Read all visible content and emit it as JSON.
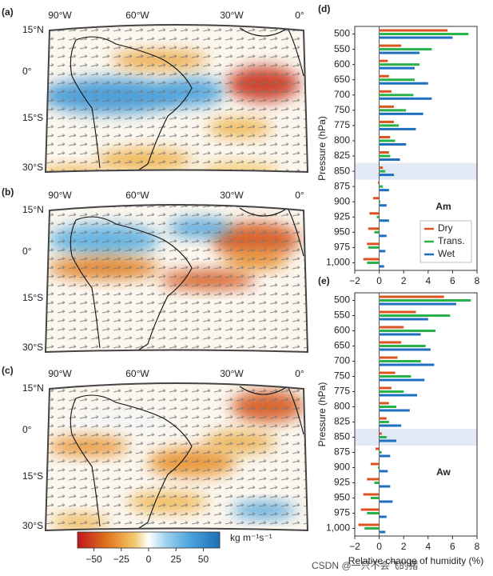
{
  "maps": {
    "panels": [
      {
        "label": "(a)"
      },
      {
        "label": "(b)"
      },
      {
        "label": "(c)"
      }
    ],
    "lon_labels": [
      "90°W",
      "60°W",
      "30°W",
      "0°"
    ],
    "lat_labels": [
      "15°N",
      "0°",
      "15°S",
      "30°S"
    ]
  },
  "colorbar": {
    "lim": [
      -65,
      65
    ],
    "ticks": [
      {
        "value": -50,
        "label": "−50"
      },
      {
        "value": -25,
        "label": "−25"
      },
      0,
      25,
      50
    ],
    "unit": "kg m⁻¹s⁻¹"
  },
  "watermark": "CSDN @一只不会飞的猪",
  "chart_data": [
    {
      "type": "bar",
      "orientation": "horizontal",
      "panel": "(d)",
      "title": "Am",
      "ylabel": "Pressure (hPa)",
      "categories": [
        "500",
        "550",
        "600",
        "650",
        "700",
        "750",
        "775",
        "800",
        "825",
        "850",
        "875",
        "900",
        "925",
        "950",
        "975",
        "1,000"
      ],
      "series": [
        {
          "name": "Dry",
          "color": "#d9541e",
          "values": [
            5.6,
            1.8,
            0.7,
            0.8,
            1.0,
            1.2,
            1.2,
            0.9,
            0.8,
            0.3,
            -0.1,
            -0.5,
            -0.8,
            -0.9,
            -1.0,
            -1.3
          ]
        },
        {
          "name": "Trans.",
          "color": "#2ab24a",
          "values": [
            7.3,
            4.3,
            3.3,
            2.9,
            2.8,
            2.2,
            1.6,
            1.3,
            0.9,
            0.5,
            0.3,
            0.1,
            -0.2,
            -0.4,
            -0.9,
            -1.0
          ]
        },
        {
          "name": "Wet",
          "color": "#1f6fc0",
          "values": [
            6.0,
            3.3,
            2.9,
            4.0,
            4.3,
            3.6,
            3.0,
            2.2,
            1.7,
            1.2,
            0.8,
            0.6,
            0.8,
            0.6,
            0.5,
            0.4
          ]
        }
      ],
      "xlim": [
        -2,
        8
      ],
      "xticks": [
        {
          "value": -2,
          "label": "−2"
        },
        0,
        2,
        4,
        6,
        8
      ],
      "highlight": "850",
      "legend": "lower right"
    },
    {
      "type": "bar",
      "orientation": "horizontal",
      "panel": "(e)",
      "title": "Aw",
      "ylabel": "Pressure (hPa)",
      "xlabel": "Relative change of humidity (%)",
      "categories": [
        "500",
        "550",
        "600",
        "650",
        "700",
        "750",
        "775",
        "800",
        "825",
        "850",
        "875",
        "900",
        "925",
        "950",
        "975",
        "1,000"
      ],
      "series": [
        {
          "name": "Dry",
          "color": "#d9541e",
          "values": [
            5.3,
            3.0,
            2.0,
            1.8,
            1.5,
            1.3,
            1.0,
            0.8,
            0.6,
            0.2,
            -0.3,
            -0.7,
            -1.0,
            -1.3,
            -1.5,
            -1.7
          ]
        },
        {
          "name": "Trans.",
          "color": "#2ab24a",
          "values": [
            7.5,
            5.8,
            4.6,
            3.8,
            3.4,
            2.6,
            2.0,
            1.4,
            0.8,
            0.6,
            0.2,
            -0.1,
            -0.4,
            -0.7,
            -1.0,
            -1.2
          ]
        },
        {
          "name": "Wet",
          "color": "#1f6fc0",
          "values": [
            6.3,
            4.0,
            3.4,
            4.2,
            4.5,
            3.7,
            3.1,
            2.5,
            1.8,
            1.4,
            0.9,
            0.7,
            0.9,
            1.1,
            0.6,
            0.5
          ]
        }
      ],
      "xlim": [
        -2,
        8
      ],
      "xticks": [
        {
          "value": -2,
          "label": "−2"
        },
        0,
        2,
        4,
        6,
        8
      ],
      "highlight": "850"
    }
  ]
}
